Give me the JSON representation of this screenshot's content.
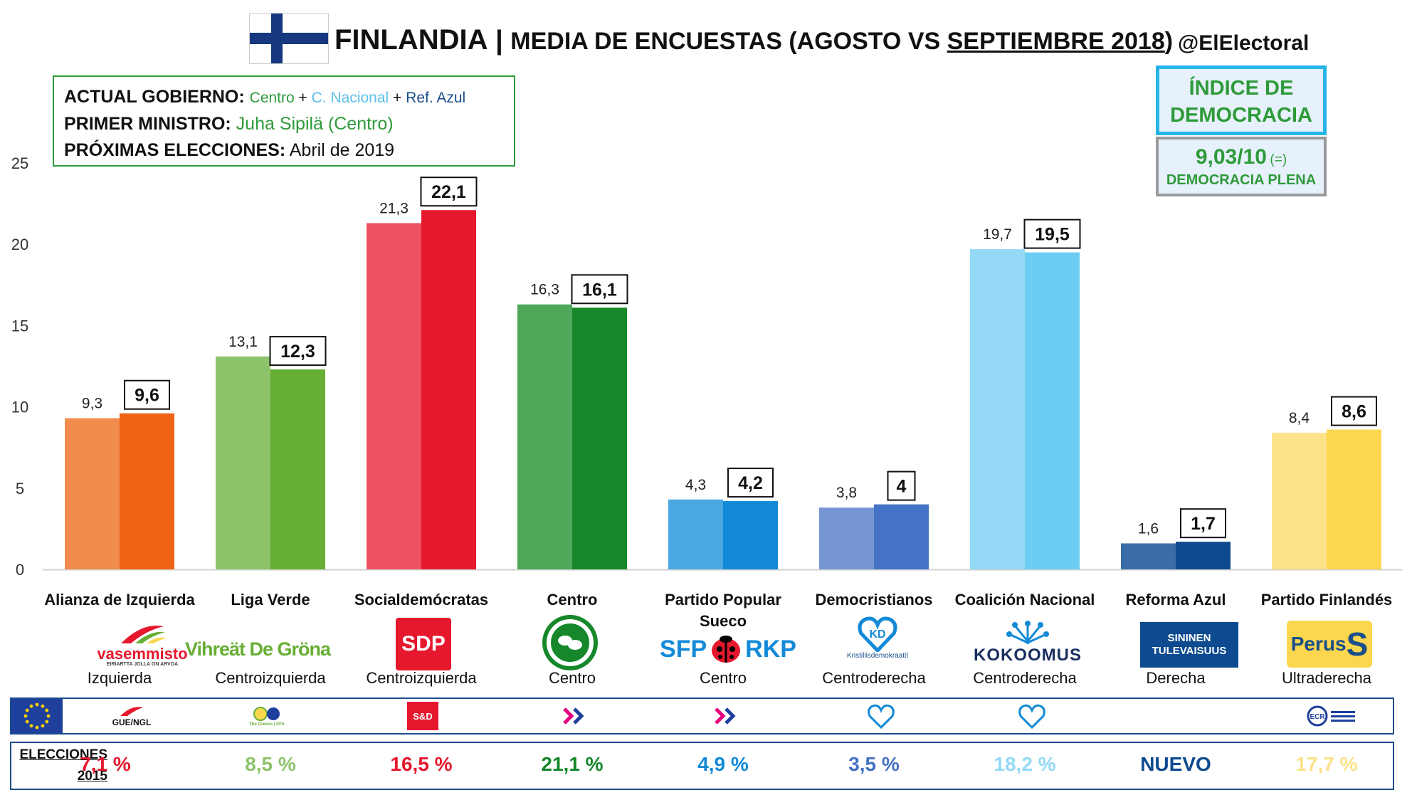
{
  "header": {
    "country": "FINLANDIA",
    "separator": "|",
    "title_part": "MEDIA DE ENCUESTAS (AGOSTO VS ",
    "title_underlined": "SEPTIEMBRE 2018",
    "title_close": ")",
    "handle": "@ElElectoral"
  },
  "government": {
    "gov_label": "ACTUAL GOBIERNO:",
    "parties": [
      {
        "name": "Centro",
        "color": "#2e9a3a"
      },
      {
        "name": "C. Nacional",
        "color": "#5bc0eb"
      },
      {
        "name": "Ref. Azul",
        "color": "#1a4e8a"
      }
    ],
    "plus": "+",
    "pm_label": "PRIMER MINISTRO:",
    "pm_value": "Juha Sipilä (Centro)",
    "next_label": "PRÓXIMAS ELECCIONES:",
    "next_value": "Abril de 2019"
  },
  "democracy": {
    "title_line1": "ÍNDICE DE",
    "title_line2": "DEMOCRACIA",
    "score": "9,03/10",
    "change": "(=)",
    "category": "DEMOCRACIA PLENA"
  },
  "chart_data": {
    "type": "bar",
    "ylim": [
      0,
      25
    ],
    "yticks": [
      0,
      5,
      10,
      15,
      20,
      25
    ],
    "grid": false,
    "series_order": [
      "agosto",
      "septiembre"
    ],
    "categories": [
      {
        "party": "Alianza de Izquierda",
        "agosto": 9.3,
        "septiembre": 9.6,
        "agosto_label": "9,3",
        "septiembre_label": "9,6",
        "color_aug": "#f28c4d",
        "color_sep": "#ef6414",
        "ideology": "Izquierda"
      },
      {
        "party": "Liga Verde",
        "agosto": 13.1,
        "septiembre": 12.3,
        "agosto_label": "13,1",
        "septiembre_label": "12,3",
        "color_aug": "#8dc36b",
        "color_sep": "#67ae35",
        "ideology": "Centroizquierda"
      },
      {
        "party": "Socialdemócratas",
        "agosto": 21.3,
        "septiembre": 22.1,
        "agosto_label": "21,3",
        "septiembre_label": "22,1",
        "color_aug": "#ec525f",
        "color_sep": "#e5182d",
        "ideology": "Centroizquierda"
      },
      {
        "party": "Centro",
        "agosto": 16.3,
        "septiembre": 16.1,
        "agosto_label": "16,3",
        "septiembre_label": "16,1",
        "color_aug": "#4fa75a",
        "color_sep": "#16872a",
        "ideology": "Centro"
      },
      {
        "party": "Partido Popular Sueco",
        "agosto": 4.3,
        "septiembre": 4.2,
        "agosto_label": "4,3",
        "septiembre_label": "4,2",
        "color_aug": "#4ca8e3",
        "color_sep": "#138ad8",
        "ideology": "Centro"
      },
      {
        "party": "Democristianos",
        "agosto": 3.8,
        "septiembre": 4,
        "agosto_label": "3,8",
        "septiembre_label": "4",
        "color_aug": "#7595d3",
        "color_sep": "#4472c4",
        "ideology": "Centroderecha"
      },
      {
        "party": "Coalición Nacional",
        "agosto": 19.7,
        "septiembre": 19.5,
        "agosto_label": "19,7",
        "septiembre_label": "19,5",
        "color_aug": "#94daf7",
        "color_sep": "#6bcdf3",
        "ideology": "Centroderecha"
      },
      {
        "party": "Reforma Azul",
        "agosto": 1.6,
        "septiembre": 1.7,
        "agosto_label": "1,6",
        "septiembre_label": "1,7",
        "color_aug": "#3a6da8",
        "color_sep": "#0d4a8f",
        "ideology": "Derecha"
      },
      {
        "party": "Partido Finlandés",
        "agosto": 8.4,
        "septiembre": 8.6,
        "agosto_label": "8,4",
        "septiembre_label": "8,6",
        "color_aug": "#fce289",
        "color_sep": "#fbd74f",
        "ideology": "Ultraderecha"
      }
    ]
  },
  "logos": [
    {
      "text": "vasemmisto",
      "sub": "EIRIARTTA JOLLA ON ARVOA",
      "icon": "vasemmisto-logo"
    },
    {
      "text": "Vihreät De Gröna",
      "icon": "vihreat-logo"
    },
    {
      "text": "SDP",
      "icon": "sdp-logo"
    },
    {
      "text": "",
      "icon": "keskusta-logo"
    },
    {
      "text": "SFP",
      "text2": "RKP",
      "icon": "sfp-rkp-logo"
    },
    {
      "text": "Kristillisdemokraatit",
      "icon": "kd-logo"
    },
    {
      "text": "KOKOOMUS",
      "icon": "kokoomus-logo"
    },
    {
      "text": "SININEN TULEVAISUUS",
      "icon": "sininen-logo"
    },
    {
      "text": "Perus",
      "text2": "S",
      "icon": "perussuomalaiset-logo"
    }
  ],
  "eu_groups": [
    {
      "text": "GUE/NGL",
      "icon": "gue-ngl-logo"
    },
    {
      "text": "The Greens | EFA",
      "icon": "greens-efa-logo"
    },
    {
      "text": "S&D",
      "icon": "s-and-d-logo"
    },
    {
      "text": "",
      "icon": "alde-chevron-icon"
    },
    {
      "text": "",
      "icon": "alde-chevron-icon"
    },
    {
      "text": "",
      "icon": "epp-heart-icon"
    },
    {
      "text": "",
      "icon": "epp-heart-icon"
    },
    {
      "text": "",
      "icon": "none"
    },
    {
      "text": "ECR",
      "icon": "ecr-logo"
    }
  ],
  "elections_2015": {
    "label_line1": "ELECCIONES",
    "label_line2": "2015",
    "values": [
      {
        "text": "7,1 %",
        "color": "#e5182d"
      },
      {
        "text": "8,5 %",
        "color": "#8dc36b"
      },
      {
        "text": "16,5 %",
        "color": "#e5182d"
      },
      {
        "text": "21,1 %",
        "color": "#16872a"
      },
      {
        "text": "4,9 %",
        "color": "#138ad8"
      },
      {
        "text": "3,5 %",
        "color": "#4472c4"
      },
      {
        "text": "18,2 %",
        "color": "#94daf7"
      },
      {
        "text": "NUEVO",
        "color": "#0d4a8f"
      },
      {
        "text": "17,7 %",
        "color": "#fce289"
      }
    ]
  }
}
